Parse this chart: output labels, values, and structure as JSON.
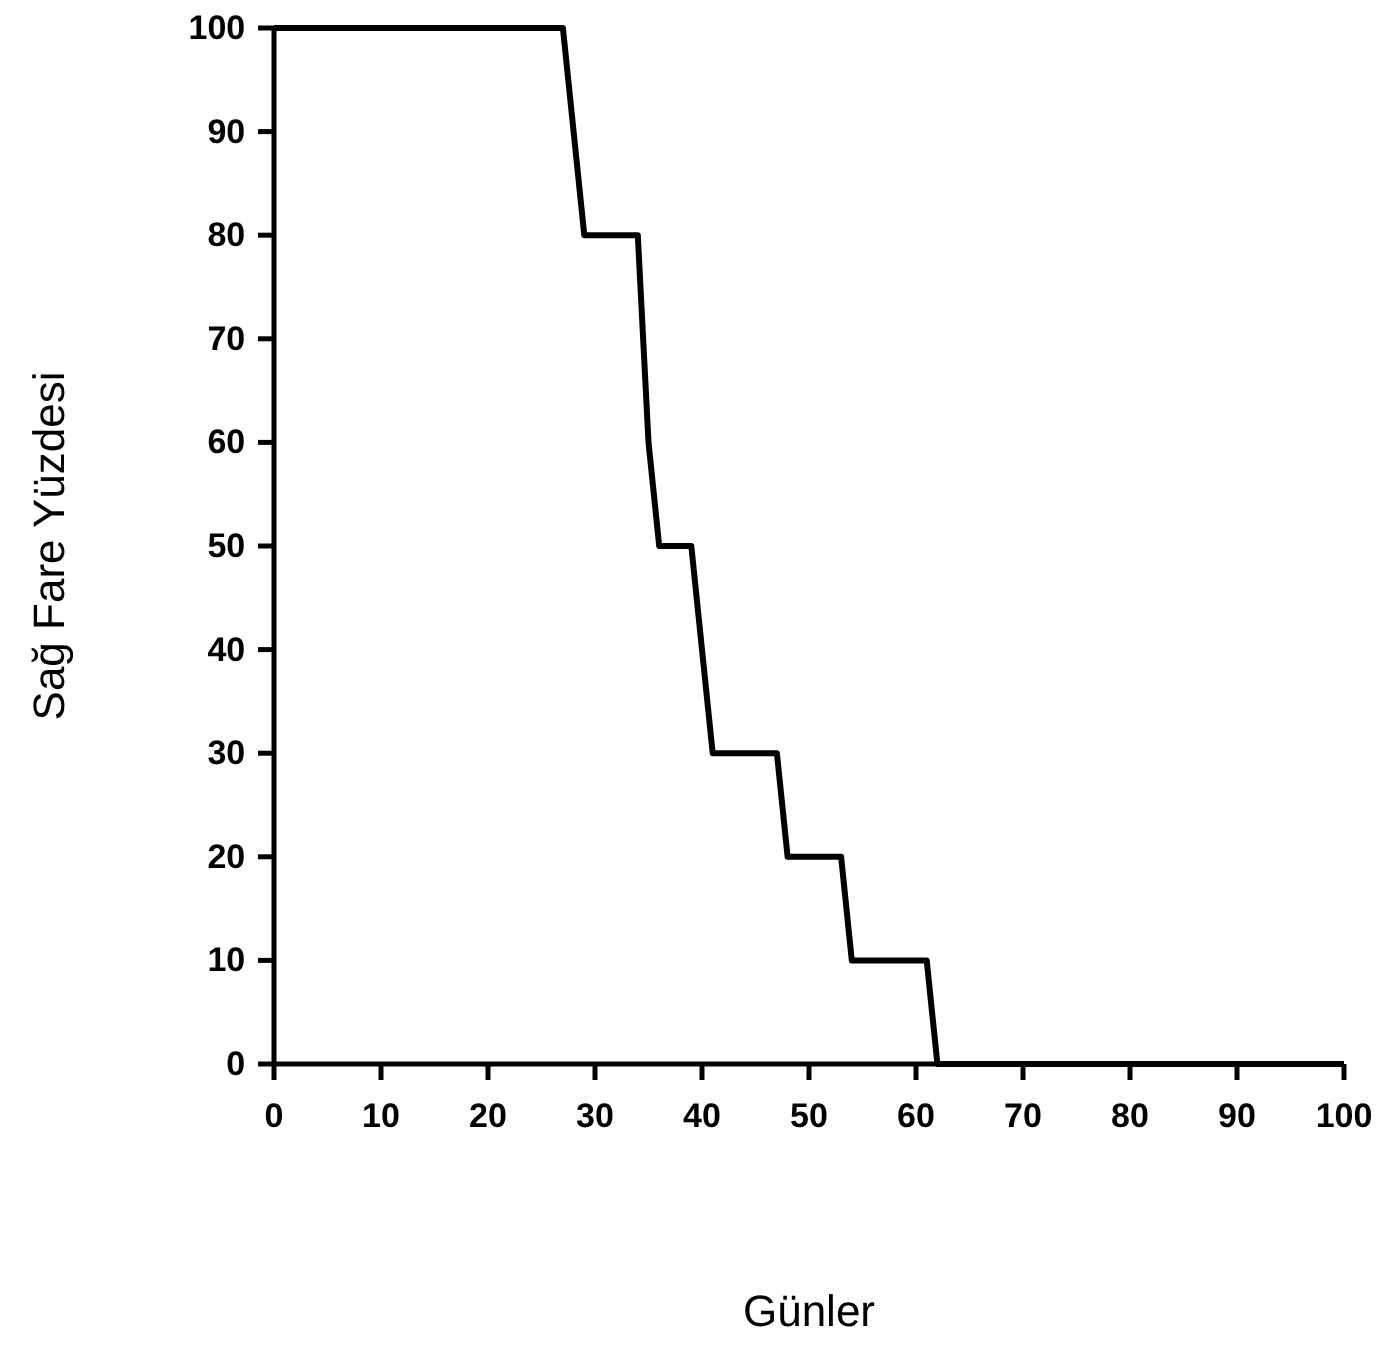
{
  "chart_data": {
    "type": "line",
    "xlabel": "Günler",
    "ylabel": "Sağ Fare Yüzdesi",
    "xlim": [
      0,
      100
    ],
    "xticks": [
      0,
      10,
      20,
      30,
      40,
      50,
      60,
      70,
      80,
      90,
      100
    ],
    "ylim": [
      0,
      100
    ],
    "yticks": [
      0,
      10,
      20,
      30,
      40,
      50,
      60,
      70,
      80,
      90,
      100
    ],
    "grid": false,
    "marker": "none",
    "line_style": "solid",
    "series": [
      {
        "color": "#000000",
        "x": [
          0,
          27,
          29,
          34,
          35,
          36,
          39,
          41,
          47,
          48,
          53,
          54,
          61,
          62,
          100
        ],
        "values": [
          100,
          100,
          80,
          80,
          60,
          50,
          50,
          30,
          30,
          20,
          20,
          10,
          10,
          0,
          0
        ]
      }
    ]
  }
}
